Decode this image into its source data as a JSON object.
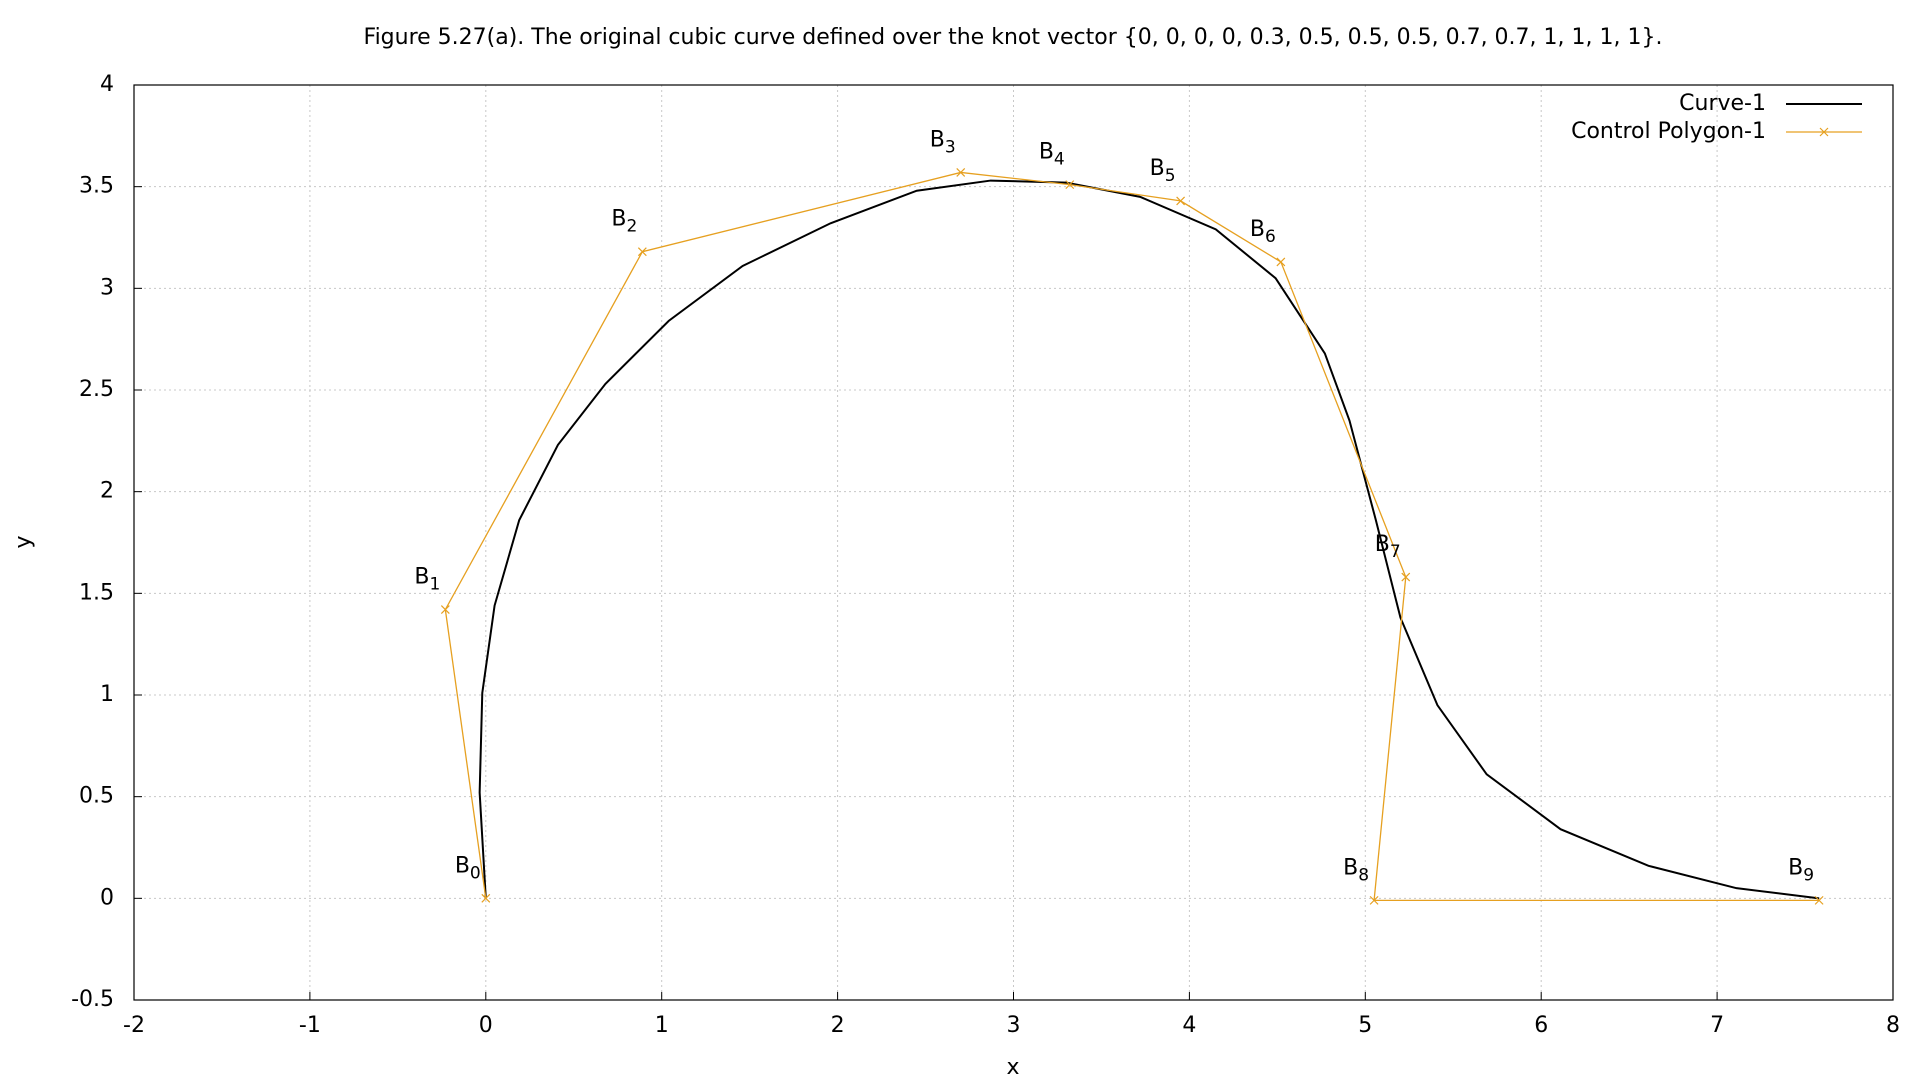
{
  "chart_data": {
    "type": "line",
    "title": "Figure 5.27(a). The original cubic curve defined over the knot vector {0, 0, 0, 0, 0.3, 0.5, 0.5, 0.5, 0.7, 0.7, 1, 1, 1, 1}.",
    "x_label": "x",
    "y_label": "y",
    "xlim": [
      -2,
      8
    ],
    "ylim": [
      -0.5,
      4
    ],
    "xticks": [
      -2,
      -1,
      0,
      1,
      2,
      3,
      4,
      5,
      6,
      7,
      8
    ],
    "yticks": [
      -0.5,
      0,
      0.5,
      1,
      1.5,
      2,
      2.5,
      3,
      3.5,
      4
    ],
    "grid": true,
    "legend": "top-right",
    "series": [
      {
        "name": "Curve-1",
        "color": "#000000",
        "x": [
          0,
          -0.035,
          -0.02,
          0.05,
          0.19,
          0.41,
          0.68,
          1.04,
          1.46,
          1.96,
          2.45,
          2.87,
          3.3,
          3.72,
          4.15,
          4.49,
          4.77,
          4.91,
          5.06,
          5.2,
          5.41,
          5.69,
          6.11,
          6.61,
          7.11,
          7.58
        ],
        "values": [
          0,
          0.52,
          1.01,
          1.44,
          1.86,
          2.23,
          2.53,
          2.84,
          3.11,
          3.32,
          3.48,
          3.53,
          3.52,
          3.45,
          3.29,
          3.05,
          2.68,
          2.35,
          1.86,
          1.38,
          0.95,
          0.61,
          0.34,
          0.16,
          0.05,
          0
        ]
      },
      {
        "name": "Control Polygon-1",
        "color": "#e6a020",
        "x": [
          0,
          -0.23,
          0.89,
          2.7,
          3.32,
          3.95,
          4.52,
          5.23,
          5.05,
          7.58
        ],
        "values": [
          0,
          1.42,
          3.18,
          3.57,
          3.51,
          3.43,
          3.13,
          1.58,
          -0.01,
          -0.01
        ],
        "labels": [
          "B",
          "B",
          "B",
          "B",
          "B",
          "B",
          "B",
          "B",
          "B",
          "B"
        ],
        "subscripts": [
          "0",
          "1",
          "2",
          "3",
          "4",
          "5",
          "6",
          "7",
          "8",
          "9"
        ]
      }
    ]
  }
}
